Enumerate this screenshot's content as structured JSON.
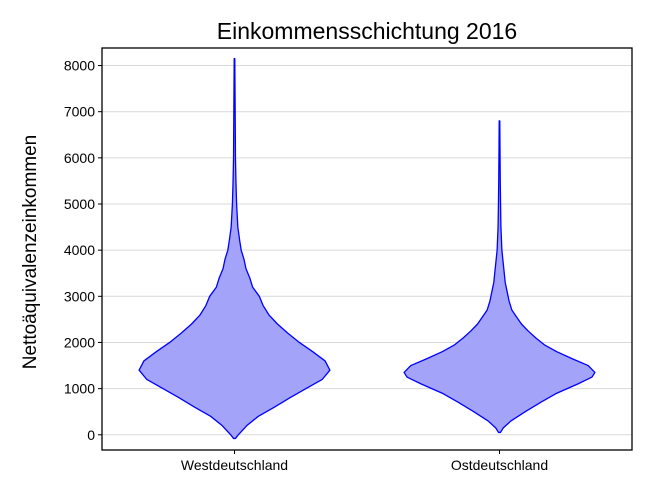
{
  "chart_data": {
    "type": "violin",
    "title": "Einkommensschichtung 2016",
    "xlabel": "",
    "ylabel": "Nettoäquivalenzeinkommen",
    "categories": [
      "Westdeutschland",
      "Ostdeutschland"
    ],
    "ylim": [
      -330,
      8380
    ],
    "yticks": [
      0,
      1000,
      2000,
      3000,
      4000,
      5000,
      6000,
      7000,
      8000
    ],
    "grid": "horizontal",
    "legend": "none",
    "colors": {
      "fill": "#a3a3fa",
      "stroke": "#0000ff",
      "grid": "#d9d9d9"
    },
    "series": [
      {
        "category": "Westdeutschland",
        "range": [
          -80,
          8150
        ],
        "density": [
          [
            -80,
            0.01
          ],
          [
            0,
            0.04
          ],
          [
            200,
            0.13
          ],
          [
            400,
            0.25
          ],
          [
            600,
            0.42
          ],
          [
            800,
            0.58
          ],
          [
            1000,
            0.75
          ],
          [
            1200,
            0.92
          ],
          [
            1400,
            1.0
          ],
          [
            1600,
            0.95
          ],
          [
            1800,
            0.82
          ],
          [
            2000,
            0.68
          ],
          [
            2200,
            0.56
          ],
          [
            2400,
            0.45
          ],
          [
            2600,
            0.36
          ],
          [
            2800,
            0.3
          ],
          [
            3000,
            0.26
          ],
          [
            3200,
            0.19
          ],
          [
            3400,
            0.16
          ],
          [
            3600,
            0.12
          ],
          [
            3800,
            0.1
          ],
          [
            4000,
            0.07
          ],
          [
            4200,
            0.055
          ],
          [
            4500,
            0.035
          ],
          [
            5000,
            0.022
          ],
          [
            5500,
            0.015
          ],
          [
            6000,
            0.01
          ],
          [
            7000,
            0.007
          ],
          [
            8150,
            0.003
          ]
        ]
      },
      {
        "category": "Ostdeutschland",
        "range": [
          50,
          6800
        ],
        "density": [
          [
            50,
            0.01
          ],
          [
            150,
            0.04
          ],
          [
            300,
            0.12
          ],
          [
            500,
            0.27
          ],
          [
            700,
            0.43
          ],
          [
            900,
            0.6
          ],
          [
            1100,
            0.82
          ],
          [
            1250,
            0.97
          ],
          [
            1350,
            1.0
          ],
          [
            1500,
            0.93
          ],
          [
            1650,
            0.76
          ],
          [
            1800,
            0.6
          ],
          [
            1950,
            0.47
          ],
          [
            2100,
            0.38
          ],
          [
            2250,
            0.3
          ],
          [
            2400,
            0.23
          ],
          [
            2550,
            0.18
          ],
          [
            2700,
            0.13
          ],
          [
            2900,
            0.1
          ],
          [
            3100,
            0.08
          ],
          [
            3300,
            0.06
          ],
          [
            3600,
            0.045
          ],
          [
            4000,
            0.025
          ],
          [
            4500,
            0.015
          ],
          [
            5000,
            0.011
          ],
          [
            5500,
            0.008
          ],
          [
            6000,
            0.006
          ],
          [
            6800,
            0.003
          ]
        ]
      }
    ]
  }
}
